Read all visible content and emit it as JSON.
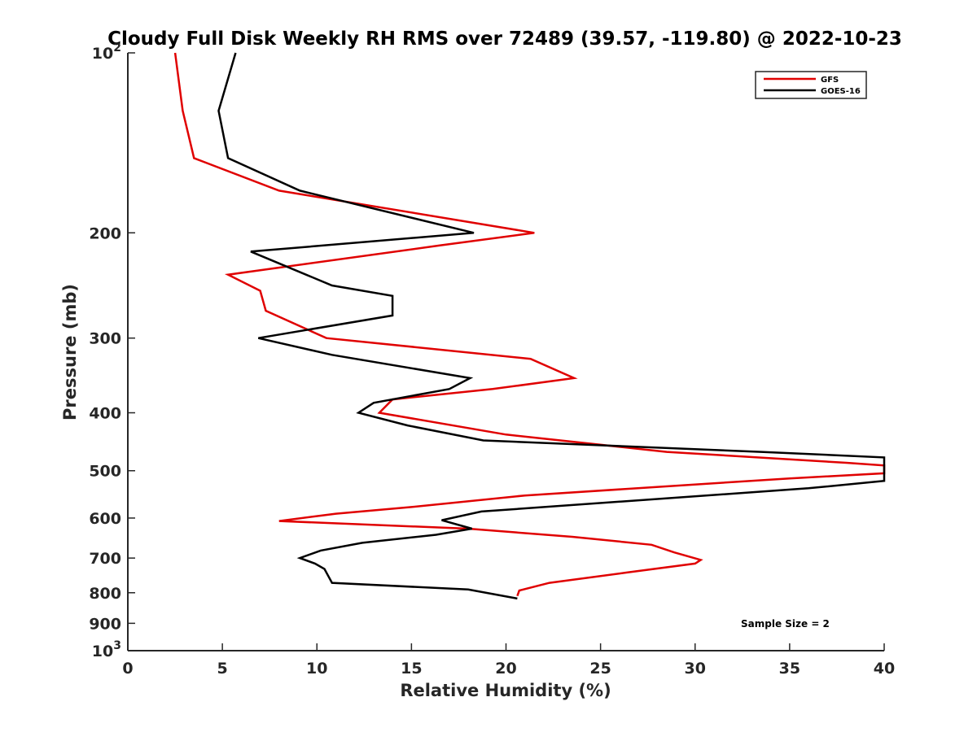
{
  "chart_data": {
    "type": "line",
    "title": "Cloudy Full Disk Weekly RH RMS over 72489 (39.57, -119.80) @ 2022-10-23",
    "xlabel": "Relative Humidity (%)",
    "ylabel": "Pressure (mb)",
    "xlim": [
      0,
      40
    ],
    "ylim": [
      100,
      1000
    ],
    "yscale": "log",
    "y_reversed": true,
    "grid": false,
    "legend_position": "top-right",
    "x_ticks": [
      "0",
      "5",
      "10",
      "15",
      "20",
      "25",
      "30",
      "35",
      "40"
    ],
    "y_ticks": [
      {
        "value": 100,
        "base": "10",
        "exp": "2"
      },
      {
        "value": 200,
        "label": "200"
      },
      {
        "value": 300,
        "label": "300"
      },
      {
        "value": 400,
        "label": "400"
      },
      {
        "value": 500,
        "label": "500"
      },
      {
        "value": 600,
        "label": "600"
      },
      {
        "value": 700,
        "label": "700"
      },
      {
        "value": 800,
        "label": "800"
      },
      {
        "value": 900,
        "label": "900"
      },
      {
        "value": 1000,
        "base": "10",
        "exp": "3"
      }
    ],
    "annotation": "Sample Size = 2",
    "series": [
      {
        "name": "GFS",
        "color": "#e00000",
        "points": [
          [
            2.5,
            100
          ],
          [
            2.9,
            125
          ],
          [
            3.5,
            150
          ],
          [
            8.0,
            170
          ],
          [
            21.5,
            200
          ],
          [
            16.5,
            210
          ],
          [
            5.3,
            235
          ],
          [
            7.0,
            250
          ],
          [
            7.3,
            270
          ],
          [
            10.5,
            300
          ],
          [
            21.3,
            325
          ],
          [
            23.6,
            350
          ],
          [
            19.3,
            365
          ],
          [
            14.0,
            380
          ],
          [
            13.3,
            400
          ],
          [
            20.0,
            435
          ],
          [
            28.5,
            465
          ],
          [
            38.0,
            485
          ],
          [
            40.0,
            490
          ],
          [
            40.0,
            505
          ],
          [
            35.0,
            515
          ],
          [
            21.0,
            550
          ],
          [
            15.0,
            575
          ],
          [
            11.0,
            590
          ],
          [
            8.0,
            607
          ],
          [
            18.0,
            625
          ],
          [
            23.5,
            645
          ],
          [
            27.7,
            665
          ],
          [
            28.9,
            685
          ],
          [
            30.3,
            705
          ],
          [
            30.0,
            715
          ],
          [
            26.4,
            740
          ],
          [
            22.3,
            770
          ],
          [
            20.7,
            793
          ],
          [
            20.6,
            810
          ]
        ]
      },
      {
        "name": "GOES-16",
        "color": "#000000",
        "points": [
          [
            5.7,
            100
          ],
          [
            4.8,
            125
          ],
          [
            5.3,
            150
          ],
          [
            9.1,
            170
          ],
          [
            18.3,
            200
          ],
          [
            6.5,
            215
          ],
          [
            10.8,
            245
          ],
          [
            14.0,
            255
          ],
          [
            14.0,
            275
          ],
          [
            6.9,
            300
          ],
          [
            10.8,
            320
          ],
          [
            18.1,
            350
          ],
          [
            17.0,
            365
          ],
          [
            13.0,
            385
          ],
          [
            12.2,
            400
          ],
          [
            14.8,
            420
          ],
          [
            18.8,
            445
          ],
          [
            33.5,
            465
          ],
          [
            40.0,
            475
          ],
          [
            40.0,
            520
          ],
          [
            36.0,
            535
          ],
          [
            18.7,
            585
          ],
          [
            16.6,
            605
          ],
          [
            18.2,
            625
          ],
          [
            16.3,
            640
          ],
          [
            12.4,
            660
          ],
          [
            10.2,
            680
          ],
          [
            9.1,
            700
          ],
          [
            9.9,
            715
          ],
          [
            10.4,
            730
          ],
          [
            10.6,
            750
          ],
          [
            10.8,
            770
          ],
          [
            18.0,
            790
          ],
          [
            20.6,
            818
          ]
        ]
      }
    ]
  }
}
